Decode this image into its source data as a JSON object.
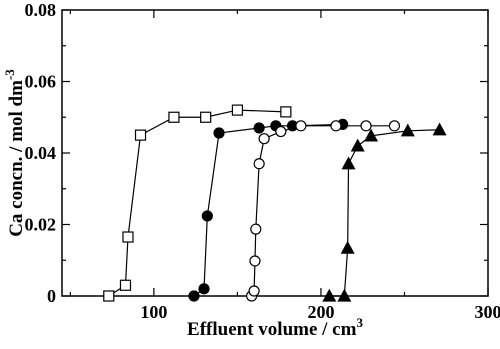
{
  "chart_data": {
    "type": "line",
    "x_label": "Effluent volume / cm",
    "x_label_sup": "3",
    "y_label": "Ca concn. / mol dm",
    "y_label_sup": "-3",
    "xlim": [
      45,
      300
    ],
    "xticks": [
      100,
      200,
      300
    ],
    "ylim": [
      0,
      0.08
    ],
    "yticks": [
      0,
      0.02,
      0.04,
      0.06,
      0.08
    ],
    "series": [
      {
        "marker": "square",
        "filled": false,
        "color": "#000000",
        "x": [
          73,
          83,
          84.5,
          92,
          112,
          131,
          150,
          179
        ],
        "values": [
          0,
          0.003,
          0.0165,
          0.045,
          0.05,
          0.05,
          0.052,
          0.0515
        ]
      },
      {
        "marker": "circle",
        "filled": true,
        "color": "#000000",
        "x": [
          124,
          130,
          132,
          139,
          163,
          173,
          183,
          213
        ],
        "values": [
          0,
          0.002,
          0.0224,
          0.0456,
          0.047,
          0.0476,
          0.0476,
          0.048
        ]
      },
      {
        "marker": "circle",
        "filled": false,
        "color": "#000000",
        "x": [
          158.5,
          160,
          160.5,
          161,
          163,
          166,
          176,
          188,
          209,
          227,
          244
        ],
        "values": [
          0,
          0.0014,
          0.0098,
          0.0187,
          0.037,
          0.044,
          0.046,
          0.0476,
          0.0476,
          0.0476,
          0.0476
        ]
      },
      {
        "marker": "triangle",
        "filled": true,
        "color": "#000000",
        "x": [
          205,
          214,
          216,
          216.5,
          222,
          230,
          252,
          271
        ],
        "values": [
          0,
          0,
          0.0134,
          0.037,
          0.042,
          0.0448,
          0.0462,
          0.0465
        ]
      }
    ]
  }
}
